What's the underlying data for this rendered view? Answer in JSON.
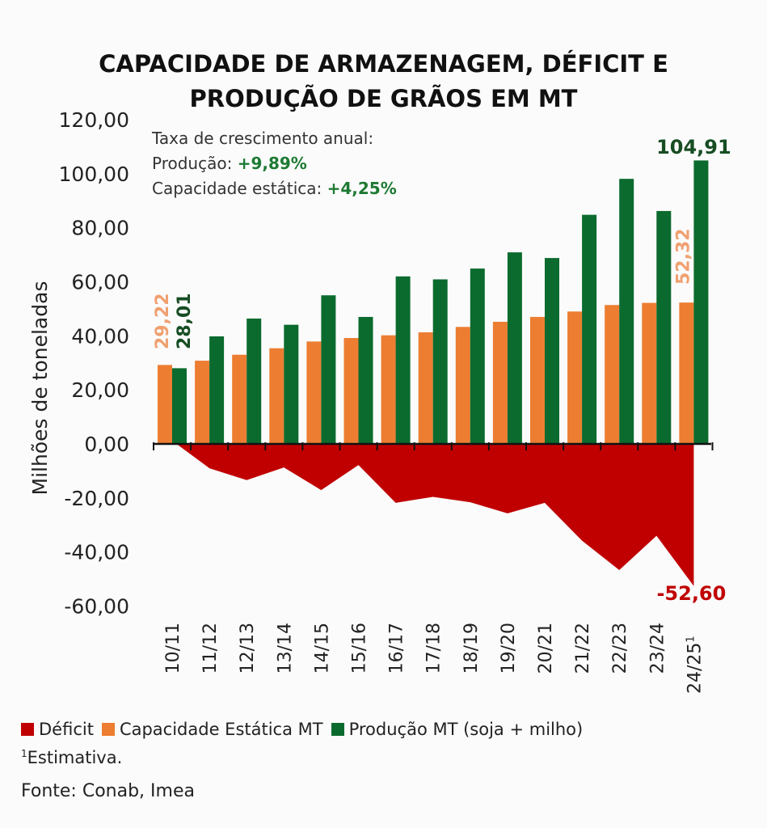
{
  "title": [
    "CAPACIDADE DE ARMAZENAGEM, DÉFICIT E",
    "PRODUÇÃO DE GRÃOS EM MT"
  ],
  "notes": {
    "heading": "Taxa de crescimento anual:",
    "producao_label": "Produção:",
    "producao_value": "+9,89%",
    "capacidade_label": "Capacidade estática:",
    "capacidade_value": "+4,25%"
  },
  "footnote": {
    "mark": "1",
    "text": "Estimativa."
  },
  "source": "Fonte: Conab, Imea",
  "colors": {
    "deficit": "#c00000",
    "capacidade": "#ed7d31",
    "producao": "#0b6b2e",
    "value_green": "#1e7a33"
  },
  "chart_data": {
    "type": "bar",
    "title": "CAPACIDADE DE ARMAZENAGEM, DÉFICIT E PRODUÇÃO DE GRÃOS EM MT",
    "ylabel": "Milhões de toneladas",
    "xlabel": "",
    "ylim": [
      -60,
      120
    ],
    "yticks": [
      "-60,00",
      "-40,00",
      "-20,00",
      "0,00",
      "20,00",
      "40,00",
      "60,00",
      "80,00",
      "100,00",
      "120,00"
    ],
    "ytick_values": [
      -60,
      -40,
      -20,
      0,
      20,
      40,
      60,
      80,
      100,
      120
    ],
    "grid": false,
    "legend": "bottom",
    "categories": [
      "10/11",
      "11/12",
      "12/13",
      "13/14",
      "14/15",
      "15/16",
      "16/17",
      "17/18",
      "18/19",
      "19/20",
      "20/21",
      "21/22",
      "22/23",
      "23/24",
      "24/25"
    ],
    "category_footnote": {
      "index": 14,
      "mark": "1"
    },
    "series": [
      {
        "name": "Déficit",
        "type": "area",
        "values": [
          1.21,
          -9.0,
          -13.4,
          -8.7,
          -17.1,
          -7.8,
          -21.8,
          -19.6,
          -21.6,
          -25.7,
          -21.8,
          -35.8,
          -46.7,
          -34.0,
          -52.6
        ]
      },
      {
        "name": "Capacidade Estática MT",
        "type": "bar",
        "values": [
          29.22,
          30.8,
          33.0,
          35.4,
          37.9,
          39.2,
          40.2,
          41.3,
          43.3,
          45.2,
          47.0,
          49.0,
          51.4,
          52.2,
          52.32
        ]
      },
      {
        "name": "Produção MT (soja + milho)",
        "type": "bar",
        "values": [
          28.01,
          39.8,
          46.4,
          44.1,
          55.0,
          47.0,
          62.0,
          60.9,
          64.9,
          70.9,
          68.8,
          84.8,
          98.1,
          86.2,
          104.91
        ]
      }
    ],
    "data_labels": [
      {
        "series": 1,
        "index": 0,
        "text": "29,22"
      },
      {
        "series": 2,
        "index": 0,
        "text": "28,01"
      },
      {
        "series": 1,
        "index": 14,
        "text": "52,32"
      },
      {
        "series": 2,
        "index": 14,
        "text": "104,91"
      },
      {
        "series": 0,
        "index": 14,
        "text": "-52,60"
      }
    ]
  }
}
